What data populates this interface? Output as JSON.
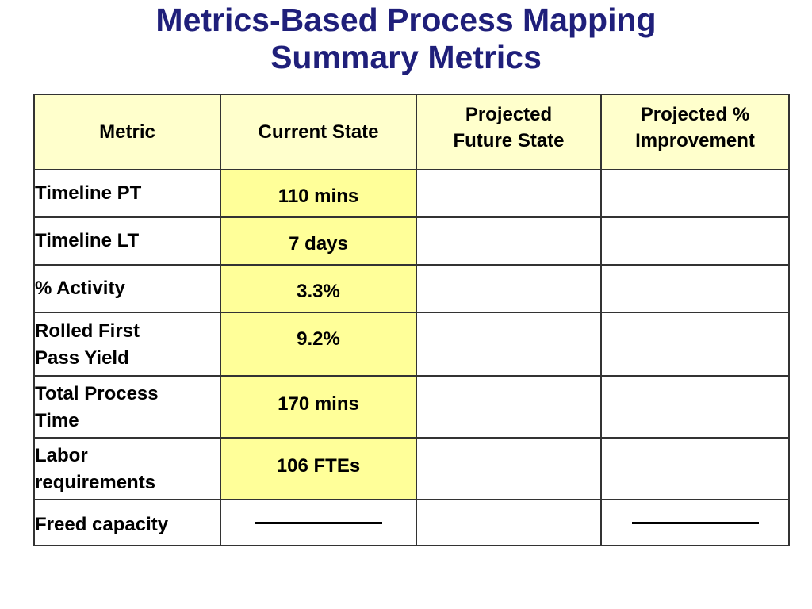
{
  "title": {
    "line1": "Metrics-Based Process Mapping",
    "line2": "Summary Metrics"
  },
  "table": {
    "headers": {
      "metric": "Metric",
      "current": "Current State",
      "future_line1": "Projected",
      "future_line2": "Future State",
      "improvement_line1": "Projected %",
      "improvement_line2": "Improvement"
    },
    "rows": [
      {
        "metric_line1": "Timeline PT",
        "metric_line2": "",
        "current": "110 mins"
      },
      {
        "metric_line1": "Timeline LT",
        "metric_line2": "",
        "current": "7 days"
      },
      {
        "metric_line1": "% Activity",
        "metric_line2": "",
        "current": "3.3%"
      },
      {
        "metric_line1": "Rolled First",
        "metric_line2": "Pass Yield",
        "current": "9.2%"
      },
      {
        "metric_line1": "Total Process",
        "metric_line2": "Time",
        "current": "170 mins"
      },
      {
        "metric_line1": "Labor",
        "metric_line2": "requirements",
        "current": "106 FTEs"
      },
      {
        "metric_line1": "Freed capacity",
        "metric_line2": "",
        "current": ""
      }
    ]
  },
  "colors": {
    "title": "#1f1f7a",
    "header_bg": "#ffffcc",
    "current_state_bg": "#ffff99",
    "border": "#333333"
  }
}
